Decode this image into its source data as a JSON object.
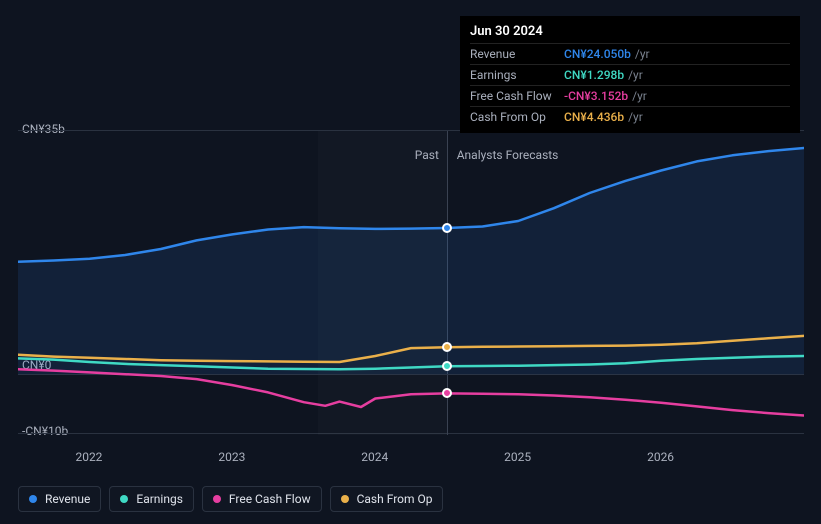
{
  "chart": {
    "type": "line",
    "background_color": "#0e1420",
    "grid_color": "#2a3240",
    "text_color": "#aab0bd",
    "x": {
      "min": 2021.5,
      "max": 2027.0,
      "ticks": [
        2022,
        2023,
        2024,
        2025,
        2026
      ],
      "tick_labels": [
        "2022",
        "2023",
        "2024",
        "2025",
        "2026"
      ],
      "tick_fontsize": 12
    },
    "y": {
      "min": -10,
      "max": 40,
      "ticks": [
        -10,
        0,
        35
      ],
      "tick_labels": [
        "-CN¥10b",
        "CN¥0",
        "CN¥35b"
      ],
      "tick_fontsize": 12
    },
    "past_band": {
      "start": 2023.6,
      "end": 2024.5,
      "fill": "rgba(255,255,255,0.02)"
    },
    "divider_x": 2024.5,
    "section_labels": {
      "past": "Past",
      "forecast": "Analysts Forecasts",
      "fontsize": 12,
      "color": "#aab0bd"
    },
    "line_width": 2.5,
    "marker_border": "#ffffff",
    "marker_size": 10,
    "series": [
      {
        "key": "revenue",
        "label": "Revenue",
        "color": "#2f86eb",
        "points": [
          [
            2021.5,
            18.5
          ],
          [
            2021.75,
            18.7
          ],
          [
            2022.0,
            19.0
          ],
          [
            2022.25,
            19.6
          ],
          [
            2022.5,
            20.6
          ],
          [
            2022.75,
            22.0
          ],
          [
            2023.0,
            23.0
          ],
          [
            2023.25,
            23.8
          ],
          [
            2023.5,
            24.2
          ],
          [
            2023.75,
            24.0
          ],
          [
            2024.0,
            23.9
          ],
          [
            2024.25,
            23.95
          ],
          [
            2024.5,
            24.05
          ],
          [
            2024.75,
            24.3
          ],
          [
            2025.0,
            25.2
          ],
          [
            2025.25,
            27.3
          ],
          [
            2025.5,
            29.8
          ],
          [
            2025.75,
            31.8
          ],
          [
            2026.0,
            33.5
          ],
          [
            2026.25,
            35.0
          ],
          [
            2026.5,
            36.0
          ],
          [
            2026.75,
            36.7
          ],
          [
            2027.0,
            37.2
          ]
        ],
        "fill_opacity": 0.12
      },
      {
        "key": "earnings",
        "label": "Earnings",
        "color": "#3fd9c4",
        "points": [
          [
            2021.5,
            2.6
          ],
          [
            2021.75,
            2.4
          ],
          [
            2022.0,
            2.0
          ],
          [
            2022.25,
            1.7
          ],
          [
            2022.5,
            1.5
          ],
          [
            2022.75,
            1.3
          ],
          [
            2023.0,
            1.1
          ],
          [
            2023.25,
            0.9
          ],
          [
            2023.5,
            0.85
          ],
          [
            2023.75,
            0.8
          ],
          [
            2024.0,
            0.9
          ],
          [
            2024.25,
            1.1
          ],
          [
            2024.5,
            1.3
          ],
          [
            2024.75,
            1.35
          ],
          [
            2025.0,
            1.4
          ],
          [
            2025.25,
            1.5
          ],
          [
            2025.5,
            1.6
          ],
          [
            2025.75,
            1.8
          ],
          [
            2026.0,
            2.2
          ],
          [
            2026.25,
            2.5
          ],
          [
            2026.5,
            2.7
          ],
          [
            2026.75,
            2.9
          ],
          [
            2027.0,
            3.0
          ]
        ]
      },
      {
        "key": "fcf",
        "label": "Free Cash Flow",
        "color": "#e63ea0",
        "points": [
          [
            2021.5,
            0.8
          ],
          [
            2021.75,
            0.6
          ],
          [
            2022.0,
            0.3
          ],
          [
            2022.25,
            0.0
          ],
          [
            2022.5,
            -0.3
          ],
          [
            2022.75,
            -0.8
          ],
          [
            2023.0,
            -1.8
          ],
          [
            2023.25,
            -3.0
          ],
          [
            2023.5,
            -4.6
          ],
          [
            2023.65,
            -5.2
          ],
          [
            2023.75,
            -4.5
          ],
          [
            2023.9,
            -5.4
          ],
          [
            2024.0,
            -4.0
          ],
          [
            2024.25,
            -3.3
          ],
          [
            2024.5,
            -3.15
          ],
          [
            2024.75,
            -3.2
          ],
          [
            2025.0,
            -3.3
          ],
          [
            2025.25,
            -3.5
          ],
          [
            2025.5,
            -3.8
          ],
          [
            2025.75,
            -4.2
          ],
          [
            2026.0,
            -4.7
          ],
          [
            2026.25,
            -5.3
          ],
          [
            2026.5,
            -5.9
          ],
          [
            2026.75,
            -6.4
          ],
          [
            2027.0,
            -6.8
          ]
        ]
      },
      {
        "key": "cfo",
        "label": "Cash From Op",
        "color": "#eab04a",
        "points": [
          [
            2021.5,
            3.2
          ],
          [
            2021.75,
            2.9
          ],
          [
            2022.0,
            2.7
          ],
          [
            2022.25,
            2.5
          ],
          [
            2022.5,
            2.3
          ],
          [
            2022.75,
            2.2
          ],
          [
            2023.0,
            2.15
          ],
          [
            2023.25,
            2.1
          ],
          [
            2023.5,
            2.05
          ],
          [
            2023.75,
            2.0
          ],
          [
            2024.0,
            3.0
          ],
          [
            2024.25,
            4.3
          ],
          [
            2024.5,
            4.44
          ],
          [
            2024.75,
            4.5
          ],
          [
            2025.0,
            4.55
          ],
          [
            2025.25,
            4.6
          ],
          [
            2025.5,
            4.65
          ],
          [
            2025.75,
            4.7
          ],
          [
            2026.0,
            4.85
          ],
          [
            2026.25,
            5.1
          ],
          [
            2026.5,
            5.5
          ],
          [
            2026.75,
            5.9
          ],
          [
            2027.0,
            6.3
          ]
        ]
      }
    ]
  },
  "tooltip": {
    "title": "Jun 30 2024",
    "unit": "/yr",
    "rows": [
      {
        "key": "revenue",
        "label": "Revenue",
        "value": "CN¥24.050b",
        "color": "#2f86eb"
      },
      {
        "key": "earnings",
        "label": "Earnings",
        "value": "CN¥1.298b",
        "color": "#3fd9c4"
      },
      {
        "key": "fcf",
        "label": "Free Cash Flow",
        "value": "-CN¥3.152b",
        "color": "#e63ea0"
      },
      {
        "key": "cfo",
        "label": "Cash From Op",
        "value": "CN¥4.436b",
        "color": "#eab04a"
      }
    ]
  },
  "legend": {
    "items": [
      {
        "key": "revenue",
        "label": "Revenue",
        "color": "#2f86eb"
      },
      {
        "key": "earnings",
        "label": "Earnings",
        "color": "#3fd9c4"
      },
      {
        "key": "fcf",
        "label": "Free Cash Flow",
        "color": "#e63ea0"
      },
      {
        "key": "cfo",
        "label": "Cash From Op",
        "color": "#eab04a"
      }
    ],
    "border_color": "#2a3240",
    "fontsize": 12
  }
}
